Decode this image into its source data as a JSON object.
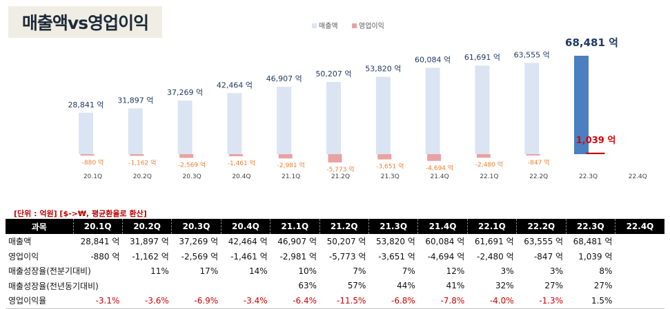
{
  "title": "매출액vs영업이익",
  "chart_data": {
    "type": "bar",
    "categories": [
      "20.1Q",
      "20.2Q",
      "20.3Q",
      "20.4Q",
      "21.1Q",
      "21.2Q",
      "21.3Q",
      "21.4Q",
      "22.1Q",
      "22.2Q",
      "22.3Q",
      "22.4Q"
    ],
    "series": [
      {
        "name": "매출액",
        "values": [
          28841,
          31897,
          37269,
          42464,
          46907,
          50207,
          53820,
          60084,
          61691,
          63555,
          68481,
          null
        ],
        "labels": [
          "28,841 억",
          "31,897 억",
          "37,269 억",
          "42,464 억",
          "46,907 억",
          "50,207 억",
          "53,820 억",
          "60,084 억",
          "61,691 억",
          "63,555 억",
          "68,481 억",
          ""
        ]
      },
      {
        "name": "영업이익",
        "values": [
          -880,
          -1162,
          -2569,
          -1461,
          -2981,
          -5773,
          -3651,
          -4694,
          -2480,
          -847,
          1039,
          null
        ],
        "labels": [
          "-880 억",
          "-1,162 억",
          "-2,569 억",
          "-1,461 억",
          "-2,981 억",
          "-5,773 억",
          "-3,651 억",
          "-4,694 억",
          "-2,480 억",
          "-847 억",
          "1,039 억",
          ""
        ]
      }
    ],
    "legend_position": "top-center",
    "colors": {
      "sales": "#dbe4f2",
      "sales_highlight": "#4a7fc1",
      "op": "#e8a2a2",
      "op_highlight": "#c00000",
      "sales_label": "#1f3864",
      "op_label": "#ed7d31",
      "op_label_highlight": "#e00000"
    },
    "highlight_index": 10
  },
  "table": {
    "note": "[단위 : 억원]  [$->₩, 평균환율로 환산]",
    "header": [
      "과목",
      "20.1Q",
      "20.2Q",
      "20.3Q",
      "20.4Q",
      "21.1Q",
      "21.2Q",
      "21.3Q",
      "21.4Q",
      "22.1Q",
      "22.2Q",
      "22.3Q",
      "22.4Q"
    ],
    "rows": [
      {
        "label": "매출액",
        "cells": [
          "28,841 억",
          "31,897 억",
          "37,269 억",
          "42,464 억",
          "46,907 억",
          "50,207 억",
          "53,820 억",
          "60,084 억",
          "61,691 억",
          "63,555 억",
          "68,481 억",
          ""
        ]
      },
      {
        "label": "영업이익",
        "cells": [
          "-880 억",
          "-1,162 억",
          "-2,569 억",
          "-1,461 억",
          "-2,981 억",
          "-5,773 억",
          "-3,651 억",
          "-4,694 억",
          "-2,480 억",
          "-847 억",
          "1,039 억",
          ""
        ]
      },
      {
        "label": "매출성장율(전분기대비)",
        "cells": [
          "",
          "11%",
          "17%",
          "14%",
          "10%",
          "7%",
          "7%",
          "12%",
          "3%",
          "3%",
          "8%",
          ""
        ]
      },
      {
        "label": "매출성장율(전년동기대비)",
        "cells": [
          "",
          "",
          "",
          "",
          "63%",
          "57%",
          "44%",
          "41%",
          "32%",
          "27%",
          "27%",
          ""
        ]
      },
      {
        "label": "영업이익율",
        "cells": [
          "-3.1%",
          "-3.6%",
          "-6.9%",
          "-3.4%",
          "-6.4%",
          "-11.5%",
          "-6.8%",
          "-7.8%",
          "-4.0%",
          "-1.3%",
          "1.5%",
          ""
        ]
      }
    ]
  }
}
